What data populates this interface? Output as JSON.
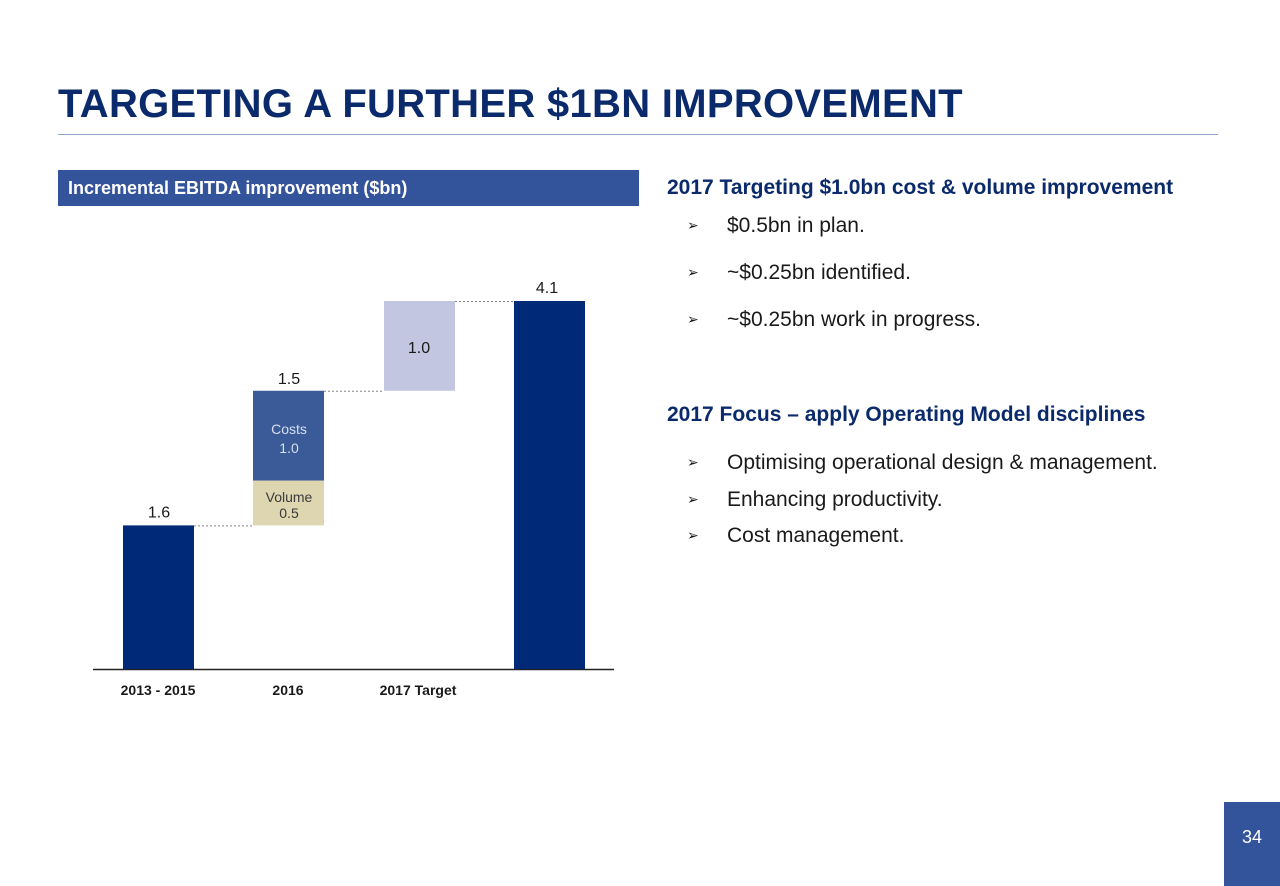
{
  "title": "TARGETING A FURTHER $1BN IMPROVEMENT",
  "chart_header": "Incremental EBITDA improvement ($bn)",
  "chart_data": {
    "type": "bar",
    "subtype": "waterfall",
    "title": "Incremental EBITDA improvement ($bn)",
    "unit": "$bn",
    "categories": [
      "2013 - 2015",
      "2016",
      "2017 Target",
      ""
    ],
    "bars": [
      {
        "category": "2013 - 2015",
        "kind": "total",
        "base": 0,
        "value": 1.6,
        "label": "1.6",
        "color": "#002a77"
      },
      {
        "category": "2016",
        "kind": "increment",
        "base": 1.6,
        "value": 0.5,
        "label": "Volume",
        "value_label": "0.5",
        "color": "#ddd6b1"
      },
      {
        "category": "2016",
        "kind": "increment",
        "base": 2.1,
        "value": 1.0,
        "label": "Costs",
        "value_label": "1.0",
        "color": "#3a5b98"
      },
      {
        "category": "2017 Target",
        "kind": "increment",
        "base": 3.1,
        "value": 1.0,
        "label": "1.0",
        "color": "#c2c6e0"
      },
      {
        "category": "",
        "kind": "total",
        "base": 0,
        "value": 4.1,
        "label": "4.1",
        "color": "#002a77"
      }
    ],
    "stack_totals": [
      {
        "category": "2016",
        "label": "1.5"
      }
    ],
    "ylim": [
      0,
      4.1
    ],
    "grid": false,
    "legend": "none"
  },
  "right_panel": {
    "section1": {
      "heading": "2017 Targeting $1.0bn cost & volume improvement",
      "bullets": [
        "$0.5bn in plan.",
        "~$0.25bn identified.",
        "~$0.25bn work in progress."
      ]
    },
    "section2": {
      "heading": "2017 Focus – apply Operating Model disciplines",
      "bullets": [
        "Optimising operational design & management.",
        "Enhancing productivity.",
        "Cost management."
      ]
    },
    "bullet_glyph": "➢"
  },
  "page_number": "34",
  "colors": {
    "title": "#0a2a6b",
    "header_bg": "#33539a",
    "navy_bar": "#002a77",
    "costs_bar": "#3a5b98",
    "volume_bar": "#ddd6b1",
    "target_bar": "#c2c6e0"
  }
}
